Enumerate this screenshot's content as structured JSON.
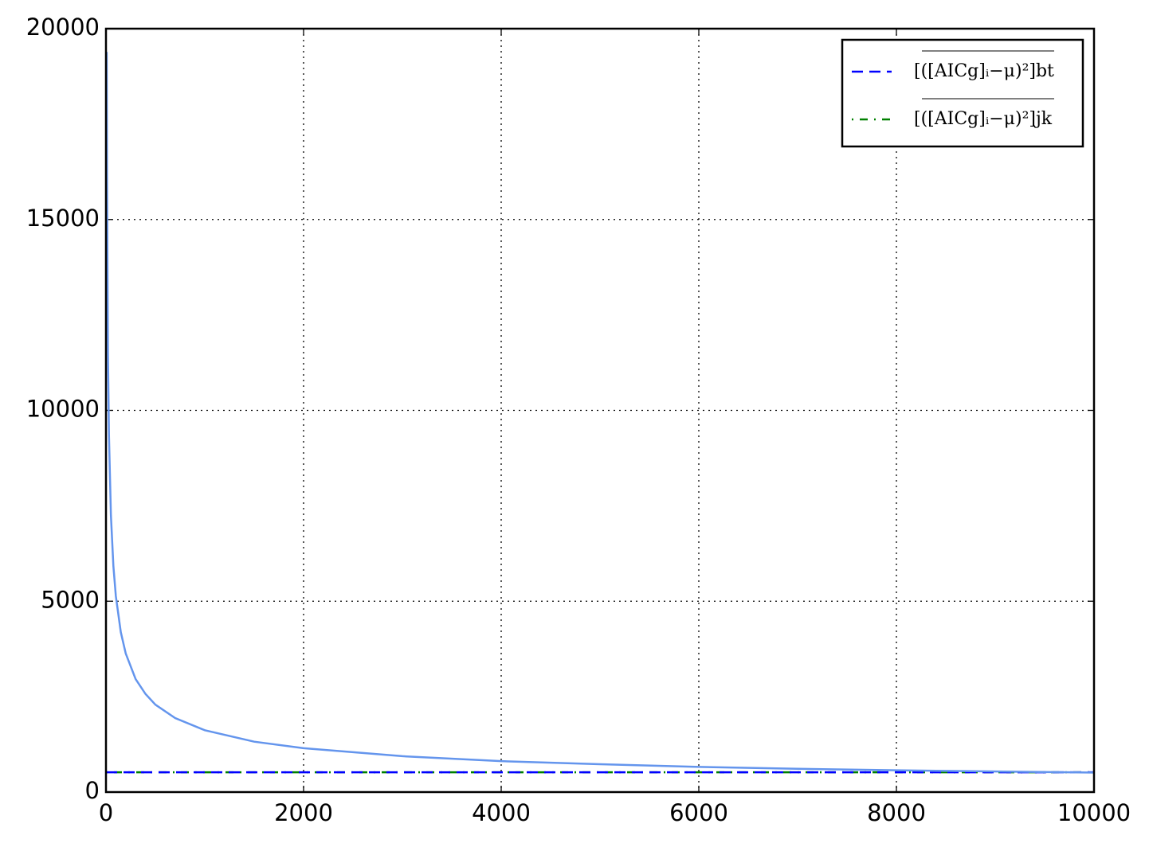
{
  "chart_data": {
    "type": "line",
    "xlim": [
      0,
      10000
    ],
    "xticks": [
      0,
      2000,
      4000,
      6000,
      8000,
      10000
    ],
    "ylim": [
      0,
      20000
    ],
    "yticks": [
      0,
      5000,
      10000,
      15000,
      20000
    ],
    "grid": true,
    "legend": "upper right",
    "series": [
      {
        "color": "#6495ed",
        "style": "solid",
        "x": [
          7,
          10,
          20,
          30,
          50,
          75,
          100,
          150,
          200,
          300,
          400,
          500,
          700,
          1000,
          1500,
          2000,
          3000,
          4000,
          5000,
          6000,
          7000,
          8000,
          9000,
          10000
        ],
        "values": [
          19390,
          16220,
          11470,
          9370,
          7250,
          5920,
          5130,
          4190,
          3630,
          2960,
          2570,
          2290,
          1940,
          1620,
          1320,
          1150,
          940,
          810,
          730,
          660,
          610,
          570,
          540,
          510
        ]
      },
      {
        "name": "[([AICg]ᵢ−μ)²]bt",
        "color": "#0000ff",
        "style": "dashed",
        "x": [
          0,
          10000
        ],
        "values": [
          520,
          520
        ]
      },
      {
        "name": "[([AICg]ᵢ−μ)²]jk",
        "color": "#008000",
        "style": "dashdot",
        "x": [
          0,
          10000
        ],
        "values": [
          520,
          520
        ]
      }
    ]
  }
}
